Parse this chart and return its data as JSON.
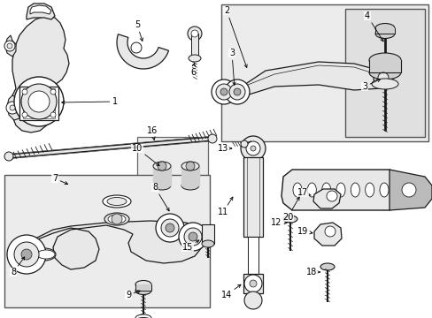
{
  "bg_color": "#ffffff",
  "line_color": "#1a1a1a",
  "gray_fill": "#d0d0d0",
  "light_gray": "#e8e8e8",
  "box_bg": "#ececec",
  "white": "#ffffff"
}
